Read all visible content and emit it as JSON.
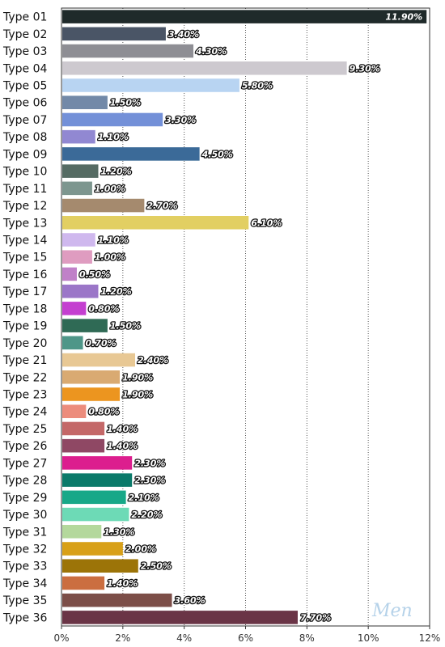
{
  "chart_data": {
    "type": "bar",
    "orientation": "horizontal",
    "categories": [
      "Type 01",
      "Type 02",
      "Type 03",
      "Type 04",
      "Type 05",
      "Type 06",
      "Type 07",
      "Type 08",
      "Type 09",
      "Type 10",
      "Type 11",
      "Type 12",
      "Type 13",
      "Type 14",
      "Type 15",
      "Type 16",
      "Type 17",
      "Type 18",
      "Type 19",
      "Type 20",
      "Type 21",
      "Type 22",
      "Type 23",
      "Type 24",
      "Type 25",
      "Type 26",
      "Type 27",
      "Type 28",
      "Type 29",
      "Type 30",
      "Type 31",
      "Type 32",
      "Type 33",
      "Type 34",
      "Type 35",
      "Type 36"
    ],
    "values": [
      11.9,
      3.4,
      4.3,
      9.3,
      5.8,
      1.5,
      3.3,
      1.1,
      4.5,
      1.2,
      1.0,
      2.7,
      6.1,
      1.1,
      1.0,
      0.5,
      1.2,
      0.8,
      1.5,
      0.7,
      2.4,
      1.9,
      1.9,
      0.8,
      1.4,
      1.4,
      2.3,
      2.3,
      2.1,
      2.2,
      1.3,
      2.0,
      2.5,
      1.4,
      3.6,
      7.7
    ],
    "value_labels": [
      "11.90%",
      "3.40%",
      "4.30%",
      "9.30%",
      "5.80%",
      "1.50%",
      "3.30%",
      "1.10%",
      "4.50%",
      "1.20%",
      "1.00%",
      "2.70%",
      "6.10%",
      "1.10%",
      "1.00%",
      "0.50%",
      "1.20%",
      "0.80%",
      "1.50%",
      "0.70%",
      "2.40%",
      "1.90%",
      "1.90%",
      "0.80%",
      "1.40%",
      "1.40%",
      "2.30%",
      "2.30%",
      "2.10%",
      "2.20%",
      "1.30%",
      "2.00%",
      "2.50%",
      "1.40%",
      "3.60%",
      "7.70%"
    ],
    "colors": [
      "#1f2a2a",
      "#4a5566",
      "#8e8e94",
      "#cdc9cf",
      "#b8d4f2",
      "#7289a8",
      "#7390d8",
      "#9188d2",
      "#3b6a98",
      "#556b63",
      "#7d968f",
      "#a58a6e",
      "#e2cf62",
      "#cfb8ee",
      "#df9cc0",
      "#c081c8",
      "#9b76c8",
      "#c43fd0",
      "#2f6a55",
      "#4e9688",
      "#e8c894",
      "#d9aa72",
      "#ec951f",
      "#ec8c7c",
      "#c46868",
      "#8f4864",
      "#dc1e8e",
      "#0b7a6a",
      "#17a888",
      "#6ddab6",
      "#b4d89c",
      "#d8a018",
      "#9c7408",
      "#cb6e40",
      "#7c4e48",
      "#6a3446"
    ],
    "xlim": [
      0,
      12
    ],
    "x_ticks": [
      "0%",
      "2%",
      "4%",
      "6%",
      "8%",
      "10%",
      "12%"
    ],
    "grid": "vertical dotted",
    "title": "",
    "xlabel": "",
    "ylabel": ""
  },
  "watermark": "Men"
}
